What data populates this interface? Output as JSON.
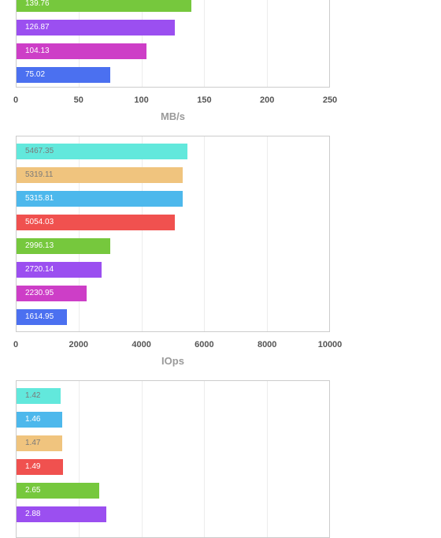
{
  "colors": {
    "cyan": "#62e8dc",
    "orange": "#f0c47e",
    "blue": "#4db8ec",
    "red": "#f0514f",
    "green": "#76c83d",
    "purple": "#9b4ff0",
    "magenta": "#cd3ec7",
    "royal": "#4b70f0"
  },
  "chart_data": [
    {
      "type": "bar",
      "orientation": "horizontal",
      "xlabel": "MB/s",
      "xlim": [
        0,
        250
      ],
      "xticks": [
        "0",
        "50",
        "100",
        "150",
        "200",
        "250"
      ],
      "grid": true,
      "bars": [
        {
          "label": "139.76",
          "value": 139.76,
          "color": "green"
        },
        {
          "label": "126.87",
          "value": 126.87,
          "color": "purple"
        },
        {
          "label": "104.13",
          "value": 104.13,
          "color": "magenta"
        },
        {
          "label": "75.02",
          "value": 75.02,
          "color": "royal"
        }
      ]
    },
    {
      "type": "bar",
      "orientation": "horizontal",
      "xlabel": "IOps",
      "xlim": [
        0,
        10000
      ],
      "xticks": [
        "0",
        "2000",
        "4000",
        "6000",
        "8000",
        "10000"
      ],
      "grid": true,
      "bars": [
        {
          "label": "5467.35",
          "value": 5467.35,
          "color": "cyan"
        },
        {
          "label": "5319.11",
          "value": 5319.11,
          "color": "orange"
        },
        {
          "label": "5315.81",
          "value": 5315.81,
          "color": "blue"
        },
        {
          "label": "5054.03",
          "value": 5054.03,
          "color": "red"
        },
        {
          "label": "2996.13",
          "value": 2996.13,
          "color": "green"
        },
        {
          "label": "2720.14",
          "value": 2720.14,
          "color": "purple"
        },
        {
          "label": "2230.95",
          "value": 2230.95,
          "color": "magenta"
        },
        {
          "label": "1614.95",
          "value": 1614.95,
          "color": "royal"
        }
      ]
    },
    {
      "type": "bar",
      "orientation": "horizontal",
      "xlabel": "",
      "xlim": [
        0,
        10
      ],
      "xticks": [],
      "grid": true,
      "bars": [
        {
          "label": "1.42",
          "value": 1.42,
          "color": "cyan"
        },
        {
          "label": "1.46",
          "value": 1.46,
          "color": "blue"
        },
        {
          "label": "1.47",
          "value": 1.47,
          "color": "orange"
        },
        {
          "label": "1.49",
          "value": 1.49,
          "color": "red"
        },
        {
          "label": "2.65",
          "value": 2.65,
          "color": "green"
        },
        {
          "label": "2.88",
          "value": 2.88,
          "color": "purple"
        }
      ]
    }
  ]
}
